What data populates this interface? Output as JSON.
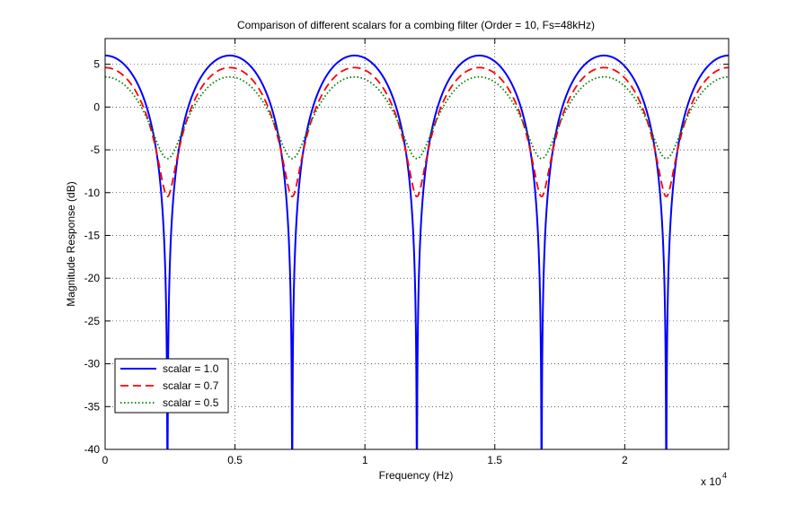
{
  "chart_data": {
    "type": "line",
    "title": "Comparison of different scalars for a combing filter (Order = 10, Fs=48kHz)",
    "xlabel": "Frequency (Hz)",
    "ylabel": "Magnitude Response (dB)",
    "x_multiplier_label": "x 10",
    "x_multiplier_exponent": "4",
    "xlim": [
      0,
      24000
    ],
    "ylim": [
      -40,
      8
    ],
    "xticks": [
      0,
      5000,
      10000,
      15000,
      20000
    ],
    "xtick_labels": [
      "0",
      "0.5",
      "1",
      "1.5",
      "2"
    ],
    "yticks": [
      5,
      0,
      -5,
      -10,
      -15,
      -20,
      -25,
      -30,
      -35,
      -40
    ],
    "ytick_labels": [
      "5",
      "0",
      "-5",
      "-10",
      "-15",
      "-20",
      "-25",
      "-30",
      "-35",
      "-40"
    ],
    "grid": true,
    "legend_position": "bottom-left",
    "filter_order": 10,
    "sample_rate_hz": 48000,
    "series": [
      {
        "name": "scalar = 1.0",
        "scalar": 1.0,
        "color": "#0000ff",
        "style": "solid"
      },
      {
        "name": "scalar = 0.7",
        "scalar": 0.7,
        "color": "#ff0000",
        "style": "dashed"
      },
      {
        "name": "scalar = 0.5",
        "scalar": 0.5,
        "color": "#008000",
        "style": "dotted"
      }
    ]
  }
}
